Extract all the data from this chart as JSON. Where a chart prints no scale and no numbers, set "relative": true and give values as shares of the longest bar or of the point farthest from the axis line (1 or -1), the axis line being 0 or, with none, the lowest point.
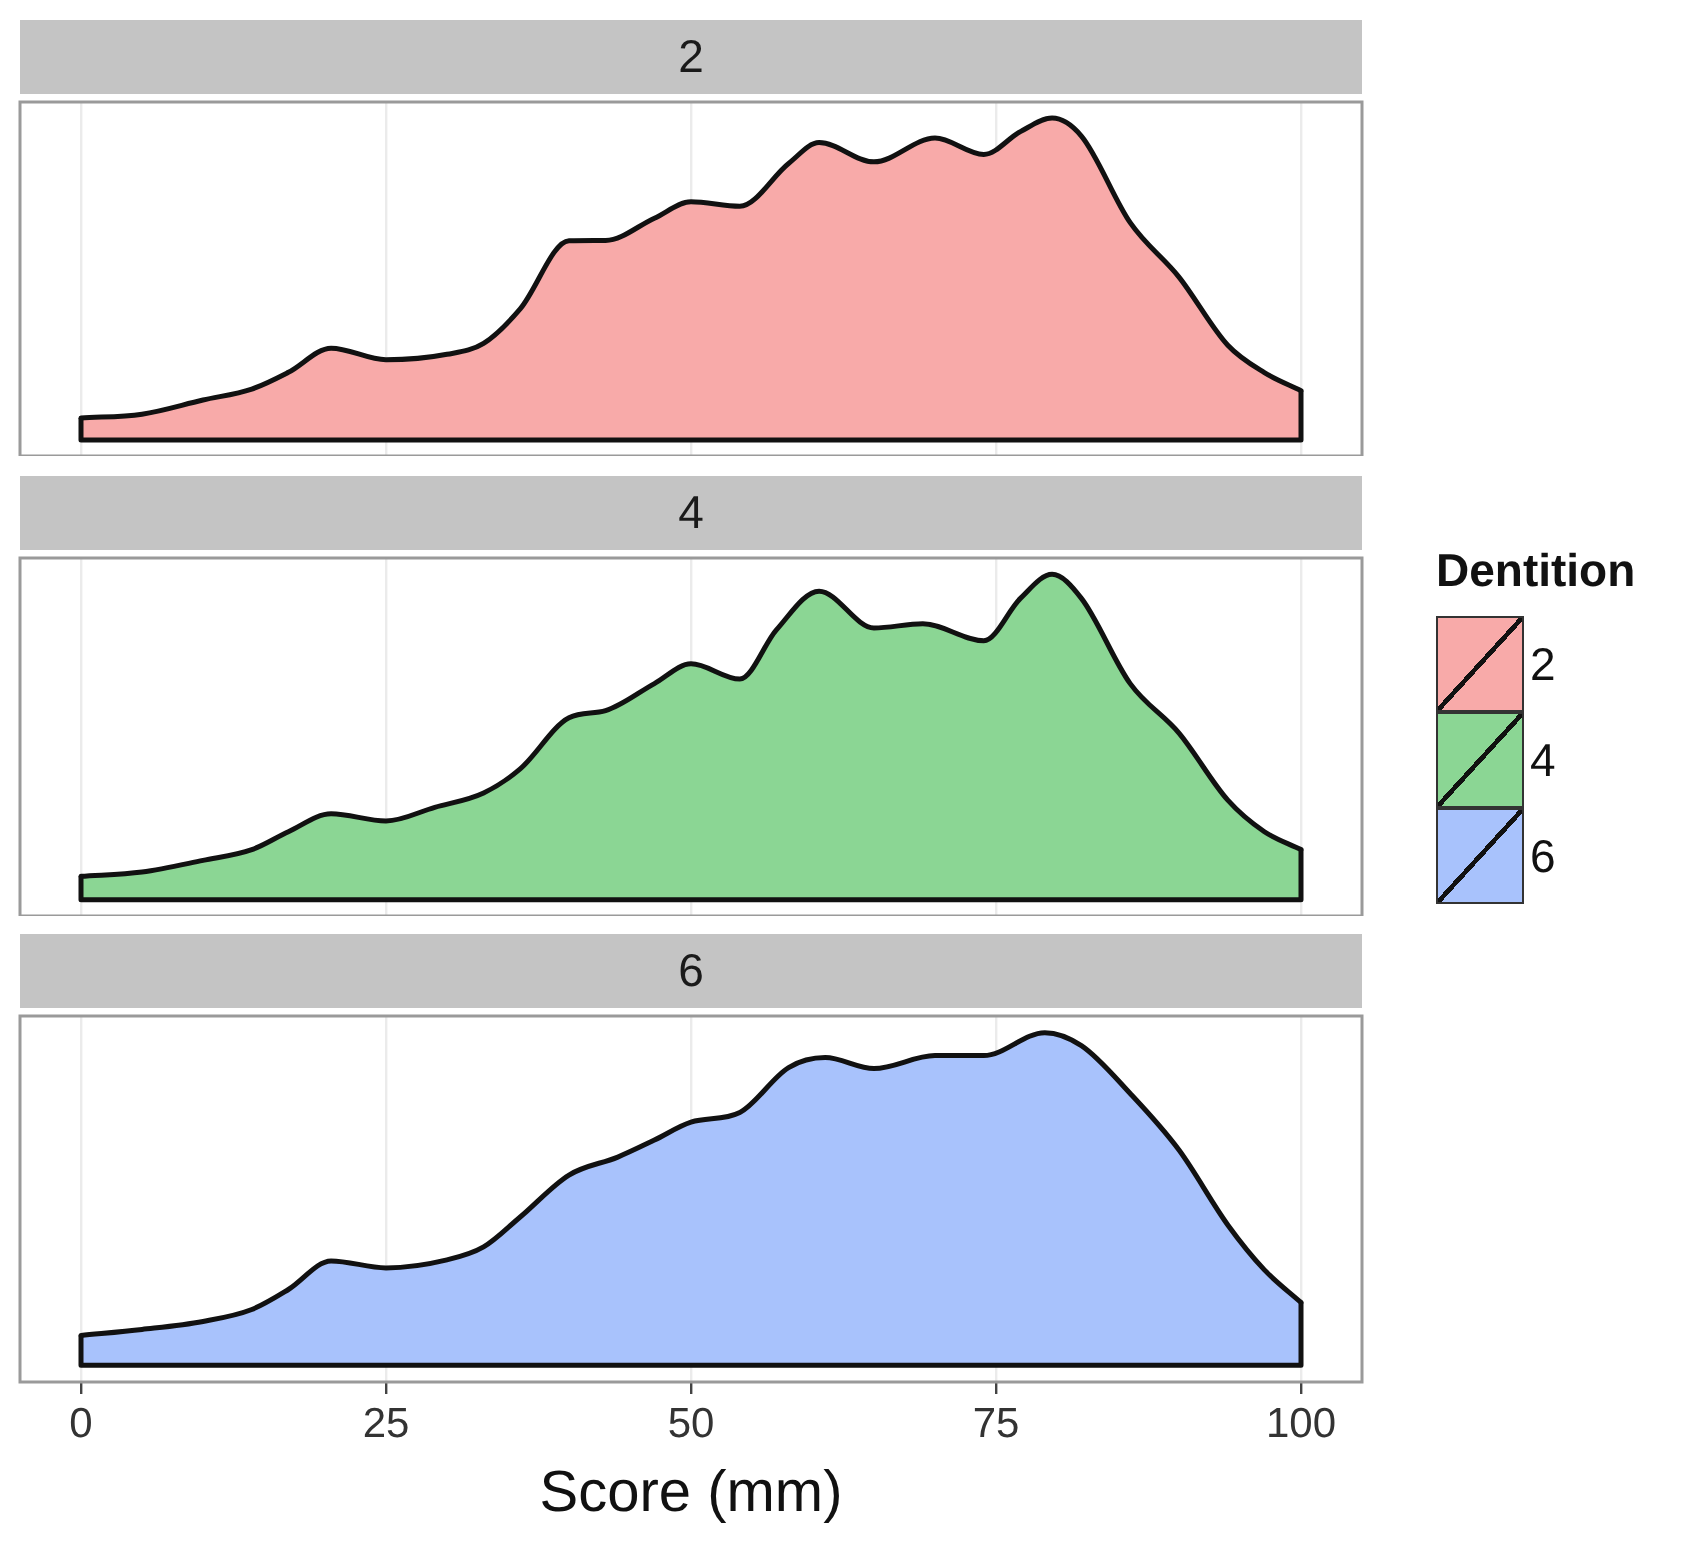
{
  "chart_data": [
    {
      "type": "area",
      "title": "2",
      "relative": true,
      "xlim": [
        -5,
        105
      ],
      "xticks": [
        0,
        25,
        50,
        75,
        100
      ],
      "tick_labels": false,
      "grid": "x",
      "legend": "right",
      "legend_title": "Dentition",
      "x": [
        0,
        5,
        10,
        14,
        17,
        20.5,
        25,
        30,
        33,
        36,
        40,
        43,
        47,
        50,
        54,
        58,
        60.5,
        65,
        70,
        74,
        77,
        79.6,
        82,
        86,
        90,
        94,
        97,
        100
      ],
      "series": [
        {
          "name": "2",
          "color": "#f8aaa9",
          "values": [
            0.068,
            0.08,
            0.124,
            0.158,
            0.21,
            0.285,
            0.249,
            0.266,
            0.3,
            0.407,
            0.619,
            0.62,
            0.689,
            0.74,
            0.726,
            0.859,
            0.924,
            0.864,
            0.938,
            0.887,
            0.958,
            1,
            0.944,
            0.675,
            0.506,
            0.294,
            0.209,
            0.153
          ]
        }
      ]
    },
    {
      "type": "area",
      "title": "4",
      "relative": true,
      "xlim": [
        -5,
        105
      ],
      "xticks": [
        0,
        25,
        50,
        75,
        100
      ],
      "tick_labels": false,
      "grid": "x",
      "legend": "right",
      "x": [
        0,
        5,
        10,
        14,
        17,
        20.5,
        25,
        29,
        33,
        36,
        40,
        43,
        47,
        50,
        54,
        57,
        60.5,
        65,
        69,
        74,
        77,
        79.6,
        82,
        86,
        90,
        94,
        97,
        100
      ],
      "series": [
        {
          "name": "4",
          "color": "#8bd694",
          "values": [
            0.072,
            0.085,
            0.121,
            0.154,
            0.209,
            0.264,
            0.242,
            0.284,
            0.328,
            0.402,
            0.559,
            0.581,
            0.664,
            0.725,
            0.678,
            0.829,
            0.948,
            0.835,
            0.848,
            0.796,
            0.926,
            1,
            0.926,
            0.664,
            0.512,
            0.306,
            0.209,
            0.154
          ]
        }
      ]
    },
    {
      "type": "area",
      "title": "6",
      "relative": true,
      "xlim": [
        -5,
        105
      ],
      "xticks": [
        0,
        25,
        50,
        75,
        100
      ],
      "tick_labels": "x",
      "grid": "x",
      "legend": "right",
      "xlabel": "Score (mm)",
      "x": [
        0,
        5,
        10,
        14,
        17,
        20.5,
        25,
        30,
        33,
        36,
        40,
        44,
        47,
        50,
        54,
        58,
        61,
        65,
        70,
        74,
        79,
        82,
        86,
        90,
        94,
        97,
        100
      ],
      "series": [
        {
          "name": "6",
          "color": "#a8c2fc",
          "values": [
            0.09,
            0.108,
            0.132,
            0.168,
            0.228,
            0.314,
            0.293,
            0.317,
            0.356,
            0.446,
            0.572,
            0.626,
            0.677,
            0.731,
            0.76,
            0.895,
            0.925,
            0.892,
            0.931,
            0.931,
            1,
            0.961,
            0.817,
            0.647,
            0.422,
            0.287,
            0.189
          ]
        }
      ]
    }
  ]
}
